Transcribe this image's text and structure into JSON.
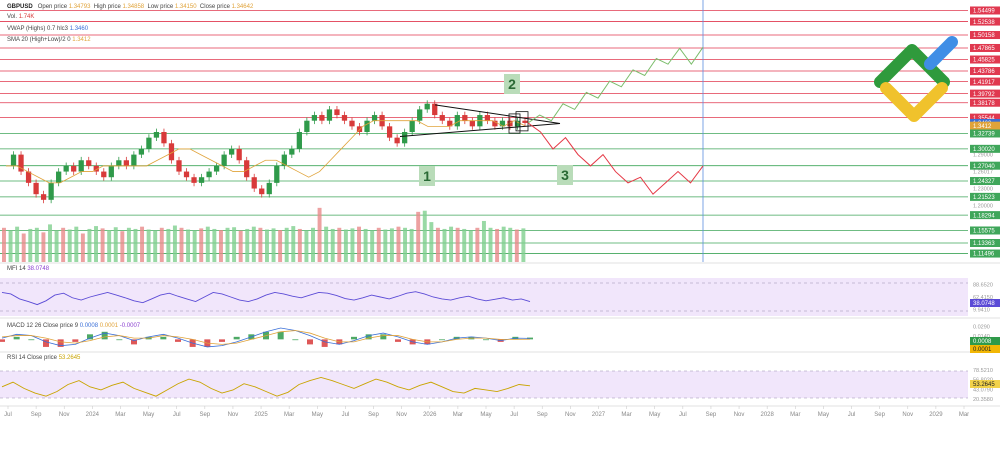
{
  "header": {
    "symbol": "GBPUSD",
    "open_label": "Open price",
    "open_value": "1.34793",
    "high_label": "High price",
    "high_value": "1.34858",
    "low_label": "Low price",
    "low_value": "1.34150",
    "close_label": "Close price",
    "close_value": "1.34642",
    "vol_label": "Vol.",
    "vol_value": "1.74K",
    "vwap_label": "VWAP (Highs) 0.7 hlc3",
    "vwap_value": "1.3460",
    "sma_label": "SMA 20 (High+Low)/2 0",
    "sma_value": "1.3412"
  },
  "indicators": {
    "mfi_label": "MFI 14",
    "mfi_value": "38.0748",
    "macd_label": "MACD 12 26 Close price 9",
    "macd_v1": "0.0008",
    "macd_v2": "0.0001",
    "macd_v3": "-0.0007",
    "rsi_label": "RSI 14 Close price",
    "rsi_value": "53.2645"
  },
  "annotations": [
    "1",
    "2",
    "3"
  ],
  "price_axis": {
    "red_levels": [
      "1.54499",
      "1.52538",
      "1.50158",
      "1.47865",
      "1.45825",
      "1.43786",
      "1.41917",
      "1.39792",
      "1.38178",
      "1.35544",
      "1.3460",
      "1.3412"
    ],
    "green_levels": [
      "1.32739",
      "1.30020",
      "1.27040",
      "1.24327",
      "1.21523",
      "1.18294",
      "1.15575",
      "1.13363",
      "1.11496"
    ],
    "grey_ticks": [
      "1.29000",
      "1.26017",
      "1.23000",
      "1.20000"
    ],
    "y_min": 1.1,
    "y_max": 1.56
  },
  "indicator_axes": {
    "mfi_ticks": [
      "88.6520",
      "62.4150",
      "9.9410"
    ],
    "macd_ticks": [
      "0.0290",
      "0.0140",
      "-0.0002"
    ],
    "rsi_ticks": [
      "78.5210",
      "56.8020",
      "43.0790",
      "20.3580"
    ]
  },
  "colors": {
    "resistance": "#e0384f",
    "support": "#3fa65a",
    "up_candle": "#2f9a4a",
    "down_candle": "#d83a3a",
    "triangle": "#111111",
    "forecast_up": "#7bbd6b",
    "forecast_down": "#e53946",
    "mfi_line": "#5b4bd6",
    "macd_line": "#3a6fd8",
    "signal_line": "#e0a33a",
    "rsi_line": "#c9a400",
    "pane_fill": "#f1e6fb",
    "current_price_bg": "#3a6fd8"
  },
  "chart_data": [
    {
      "type": "candlestick",
      "title": "GBPUSD",
      "x_tick_labels": [
        "Jul",
        "Sep",
        "Nov",
        "2024",
        "Mar",
        "May",
        "Jul",
        "Sep",
        "Nov",
        "2025",
        "Mar",
        "May",
        "Jul",
        "Sep",
        "Nov",
        "2026",
        "Mar",
        "May",
        "Jul",
        "Sep",
        "Nov",
        "2027",
        "Mar",
        "May",
        "Jul",
        "Sep",
        "Nov",
        "2028",
        "Mar",
        "May",
        "Jul",
        "Sep",
        "Nov",
        "2029",
        "Mar"
      ],
      "ylim": [
        1.1,
        1.56
      ],
      "close_path": [
        1.27,
        1.29,
        1.26,
        1.24,
        1.22,
        1.21,
        1.24,
        1.26,
        1.27,
        1.26,
        1.28,
        1.27,
        1.26,
        1.25,
        1.27,
        1.28,
        1.27,
        1.29,
        1.3,
        1.32,
        1.33,
        1.31,
        1.28,
        1.26,
        1.25,
        1.24,
        1.25,
        1.26,
        1.27,
        1.29,
        1.3,
        1.28,
        1.25,
        1.23,
        1.22,
        1.24,
        1.27,
        1.29,
        1.3,
        1.33,
        1.35,
        1.36,
        1.35,
        1.37,
        1.36,
        1.35,
        1.34,
        1.33,
        1.35,
        1.36,
        1.34,
        1.32,
        1.31,
        1.33,
        1.35,
        1.37,
        1.38,
        1.36,
        1.35,
        1.34,
        1.36,
        1.35,
        1.34,
        1.36,
        1.35,
        1.34,
        1.35,
        1.34,
        1.35,
        1.346
      ],
      "sma": [
        1.27,
        1.27,
        1.26,
        1.25,
        1.24,
        1.24,
        1.25,
        1.26,
        1.26,
        1.27,
        1.27,
        1.27,
        1.27,
        1.27,
        1.28,
        1.29,
        1.3,
        1.3,
        1.29,
        1.28,
        1.27,
        1.26,
        1.26,
        1.27,
        1.28,
        1.28,
        1.27,
        1.26,
        1.25,
        1.26,
        1.28,
        1.3,
        1.32,
        1.34,
        1.35,
        1.35,
        1.35,
        1.35,
        1.35,
        1.34,
        1.34,
        1.34,
        1.35,
        1.35,
        1.35,
        1.35,
        1.34,
        1.35,
        1.341
      ],
      "triangle": {
        "upper": [
          [
            1.378,
            0.435
          ],
          [
            1.345,
            0.56
          ]
        ],
        "lower": [
          [
            1.322,
            0.4
          ],
          [
            1.345,
            0.56
          ]
        ]
      },
      "forecast_up": [
        1.346,
        1.36,
        1.35,
        1.38,
        1.37,
        1.4,
        1.39,
        1.42,
        1.41,
        1.44,
        1.43,
        1.46,
        1.45,
        1.478,
        1.45,
        1.48
      ],
      "forecast_down": [
        1.346,
        1.33,
        1.3,
        1.32,
        1.29,
        1.27,
        1.29,
        1.26,
        1.24,
        1.25,
        1.22,
        1.24,
        1.26,
        1.24,
        1.27
      ]
    },
    {
      "type": "bar",
      "title": "Vol.",
      "values": [
        0.6,
        0.55,
        0.62,
        0.5,
        0.58,
        0.6,
        0.52,
        0.66,
        0.55,
        0.6,
        0.57,
        0.62,
        0.5,
        0.58,
        0.63,
        0.59,
        0.56,
        0.61,
        0.54,
        0.6,
        0.58,
        0.62,
        0.57,
        0.55,
        0.6,
        0.58,
        0.64,
        0.6,
        0.57,
        0.55,
        0.59,
        0.62,
        0.58,
        0.56,
        0.6,
        0.61,
        0.55,
        0.58,
        0.62,
        0.6,
        0.57,
        0.59,
        0.56,
        0.6,
        0.63,
        0.58,
        0.55,
        0.6,
        0.95,
        0.62,
        0.58,
        0.6,
        0.57,
        0.59,
        0.62,
        0.58,
        0.55,
        0.6,
        0.57,
        0.59,
        0.62,
        0.6,
        0.58,
        0.88,
        0.9,
        0.7,
        0.6,
        0.58,
        0.62,
        0.6,
        0.58,
        0.55,
        0.6,
        0.72,
        0.6,
        0.58,
        0.62,
        0.6,
        0.57,
        0.59
      ]
    },
    {
      "type": "line",
      "title": "MFI 14",
      "values": [
        62,
        58,
        45,
        38,
        30,
        40,
        55,
        60,
        48,
        42,
        50,
        56,
        62,
        55,
        48,
        40,
        35,
        45,
        55,
        60,
        52,
        45,
        38,
        50,
        62,
        58,
        50,
        42,
        38,
        45,
        55,
        62,
        58,
        52,
        48,
        55,
        62,
        60,
        54,
        46,
        42,
        48,
        55,
        50,
        45,
        52,
        60,
        64,
        58,
        50,
        45,
        42,
        48,
        52,
        45,
        40,
        44,
        48,
        42,
        45,
        38
      ],
      "ylim": [
        0,
        100
      ]
    },
    {
      "type": "line",
      "title": "MACD 12 26 Close price 9",
      "macd": [
        0.001,
        0.004,
        0.003,
        -0.002,
        -0.005,
        -0.004,
        0.001,
        0.005,
        0.003,
        -0.001,
        0.002,
        0.004,
        0.001,
        -0.003,
        -0.006,
        -0.005,
        -0.002,
        0.002,
        0.006,
        0.009,
        0.007,
        0.003,
        -0.002,
        -0.004,
        -0.001,
        0.003,
        0.005,
        0.002,
        -0.002,
        -0.004,
        -0.002,
        0.001,
        0.002,
        0.001,
        -0.001,
        0.001,
        0.0008
      ],
      "signal": [
        0.002,
        0.003,
        0.003,
        0.001,
        -0.002,
        -0.003,
        -0.001,
        0.002,
        0.003,
        0.001,
        0.001,
        0.003,
        0.002,
        0.0,
        -0.003,
        -0.004,
        -0.003,
        0.0,
        0.003,
        0.006,
        0.007,
        0.005,
        0.001,
        -0.002,
        -0.002,
        0.001,
        0.003,
        0.003,
        0.0,
        -0.002,
        -0.002,
        0.0,
        0.001,
        0.001,
        0.0,
        0.0,
        0.0001
      ],
      "ylim": [
        -0.01,
        0.03
      ]
    },
    {
      "type": "line",
      "title": "RSI 14 Close price",
      "values": [
        52,
        58,
        50,
        44,
        40,
        46,
        55,
        60,
        52,
        48,
        54,
        58,
        50,
        45,
        40,
        48,
        56,
        62,
        58,
        50,
        44,
        48,
        56,
        52,
        46,
        40,
        45,
        55,
        60,
        64,
        60,
        55,
        50,
        56,
        62,
        58,
        52,
        48,
        54,
        58,
        52,
        46,
        44,
        50,
        48,
        46,
        50,
        55,
        53.2645
      ],
      "ylim": [
        30,
        80
      ]
    }
  ]
}
